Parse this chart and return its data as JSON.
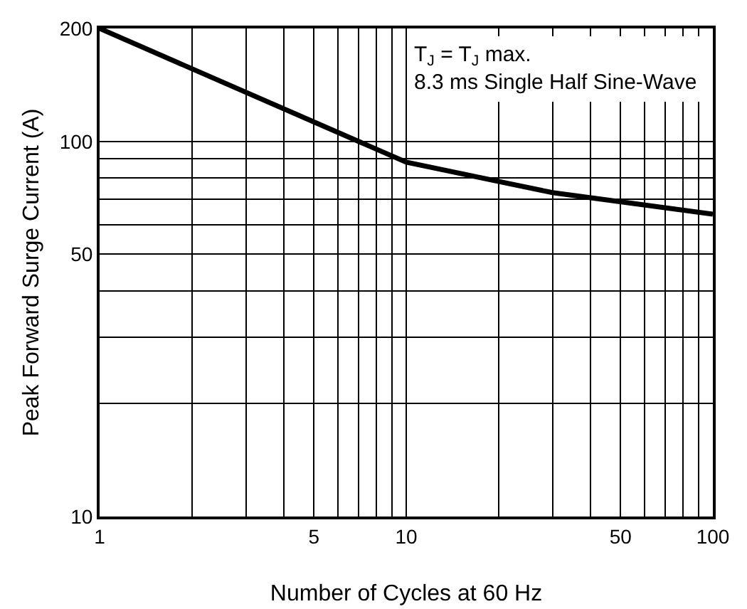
{
  "chart_data": {
    "type": "line",
    "xlabel": "Number of Cycles at 60 Hz",
    "ylabel": "Peak Forward Surge Current (A)",
    "annotations": [
      "T$_{J}$ = T$_{J}$ max.\n8.3 ms Single Half Sine-Wave"
    ],
    "x": [
      1,
      10,
      30,
      100
    ],
    "series": [
      {
        "color": "#000000",
        "values": [
          200,
          88,
          73,
          64
        ]
      }
    ],
    "log": "xy",
    "grid": true,
    "marker": "none",
    "line_style": "solid",
    "xlim": [
      1,
      100
    ],
    "ylim": [
      10,
      200
    ],
    "xticks": [
      1,
      {
        "value": 2,
        "label": null
      },
      {
        "value": 3,
        "label": null
      },
      {
        "value": 4,
        "label": null
      },
      5,
      {
        "value": 6,
        "label": null
      },
      {
        "value": 7,
        "label": null
      },
      {
        "value": 8,
        "label": null
      },
      {
        "value": 9,
        "label": null
      },
      10,
      {
        "value": 20,
        "label": null
      },
      {
        "value": 30,
        "label": null
      },
      {
        "value": 40,
        "label": null
      },
      50,
      {
        "value": 60,
        "label": null
      },
      {
        "value": 70,
        "label": null
      },
      {
        "value": 80,
        "label": null
      },
      {
        "value": 90,
        "label": null
      },
      100
    ],
    "yticks": [
      10,
      {
        "value": 20,
        "label": null
      },
      {
        "value": 30,
        "label": null
      },
      {
        "value": 40,
        "label": null
      },
      50,
      {
        "value": 60,
        "label": null
      },
      {
        "value": 70,
        "label": null
      },
      {
        "value": 80,
        "label": null
      },
      {
        "value": 90,
        "label": null
      },
      100,
      200
    ]
  }
}
